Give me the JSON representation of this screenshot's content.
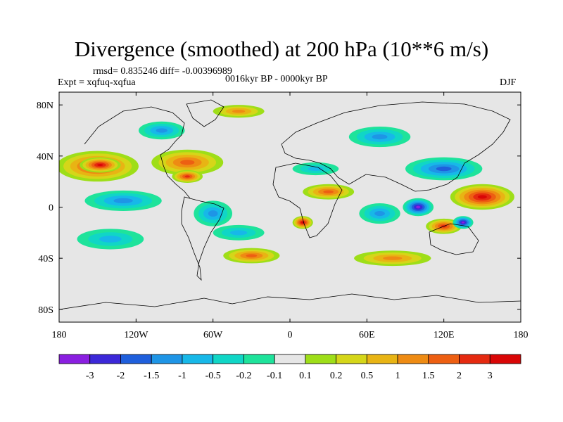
{
  "title": "Divergence (smoothed) at 200 hPa (10**6 m/s)",
  "stats_line": "rmsd= 0.835246 diff= -0.00396989",
  "expt_line": "Expt = xqfuq-xqfua",
  "period_line": "0016kyr BP - 0000kyr BP",
  "season": "DJF",
  "map": {
    "projection": "cylindrical equidistant",
    "lon_range": [
      -180,
      180
    ],
    "lat_range": [
      -90,
      90
    ],
    "lat_ticks": [
      {
        "value": 80,
        "label": "80N"
      },
      {
        "value": 40,
        "label": "40N"
      },
      {
        "value": 0,
        "label": "0"
      },
      {
        "value": -40,
        "label": "40S"
      },
      {
        "value": -80,
        "label": "80S"
      }
    ],
    "lon_ticks": [
      {
        "value": -180,
        "label": "180"
      },
      {
        "value": -120,
        "label": "120W"
      },
      {
        "value": -60,
        "label": "60W"
      },
      {
        "value": 0,
        "label": "0"
      },
      {
        "value": 60,
        "label": "60E"
      },
      {
        "value": 120,
        "label": "120E"
      },
      {
        "value": 180,
        "label": "180"
      }
    ],
    "features": [
      {
        "name": "north-pacific-positive",
        "lon": -150,
        "lat": 32,
        "rx": 32,
        "ry": 12,
        "level": 6
      },
      {
        "name": "north-pacific-core",
        "lon": -148,
        "lat": 33,
        "rx": 16,
        "ry": 6,
        "level": 7
      },
      {
        "name": "tropical-pacific-negative",
        "lon": -130,
        "lat": 5,
        "rx": 30,
        "ry": 8,
        "level": -4
      },
      {
        "name": "south-pacific-negative",
        "lon": -140,
        "lat": -25,
        "rx": 26,
        "ry": 8,
        "level": -3
      },
      {
        "name": "north-atlantic-positive",
        "lon": -80,
        "lat": 35,
        "rx": 28,
        "ry": 10,
        "level": 5
      },
      {
        "name": "gulf-positive",
        "lon": -80,
        "lat": 24,
        "rx": 12,
        "ry": 5,
        "level": 6
      },
      {
        "name": "amazon-negative",
        "lon": -60,
        "lat": -5,
        "rx": 15,
        "ry": 10,
        "level": -4
      },
      {
        "name": "south-atlantic-negative",
        "lon": -40,
        "lat": -20,
        "rx": 20,
        "ry": 6,
        "level": -3
      },
      {
        "name": "southern-atlantic-positive",
        "lon": -30,
        "lat": -38,
        "rx": 22,
        "ry": 6,
        "level": 5
      },
      {
        "name": "west-africa-positive",
        "lon": 10,
        "lat": -12,
        "rx": 8,
        "ry": 5,
        "level": 7
      },
      {
        "name": "sahara-positive",
        "lon": 30,
        "lat": 12,
        "rx": 20,
        "ry": 6,
        "level": 5
      },
      {
        "name": "mediterranean-negative",
        "lon": 20,
        "lat": 30,
        "rx": 18,
        "ry": 5,
        "level": -3
      },
      {
        "name": "siberia-negative",
        "lon": 70,
        "lat": 55,
        "rx": 24,
        "ry": 8,
        "level": -4
      },
      {
        "name": "china-negative",
        "lon": 120,
        "lat": 30,
        "rx": 30,
        "ry": 9,
        "level": -5
      },
      {
        "name": "indian-ocean-negative",
        "lon": 70,
        "lat": -5,
        "rx": 16,
        "ry": 8,
        "level": -4
      },
      {
        "name": "maritime-negative",
        "lon": 100,
        "lat": 0,
        "rx": 12,
        "ry": 7,
        "level": -7
      },
      {
        "name": "west-pacific-positive",
        "lon": 150,
        "lat": 8,
        "rx": 25,
        "ry": 10,
        "level": 7
      },
      {
        "name": "australia-positive",
        "lon": 120,
        "lat": -15,
        "rx": 14,
        "ry": 6,
        "level": 6
      },
      {
        "name": "australia-negative",
        "lon": 135,
        "lat": -12,
        "rx": 8,
        "ry": 5,
        "level": -7
      },
      {
        "name": "southern-ocean-positive",
        "lon": 80,
        "lat": -40,
        "rx": 30,
        "ry": 6,
        "level": 4
      },
      {
        "name": "north-canada-negative",
        "lon": -100,
        "lat": 60,
        "rx": 18,
        "ry": 7,
        "level": -4
      },
      {
        "name": "arctic-positive",
        "lon": -40,
        "lat": 75,
        "rx": 20,
        "ry": 5,
        "level": 4
      }
    ]
  },
  "colorbar": {
    "labels": [
      "-3",
      "-2",
      "-1.5",
      "-1",
      "-0.5",
      "-0.2",
      "-0.1",
      "0.1",
      "0.2",
      "0.5",
      "1",
      "1.5",
      "2",
      "3"
    ],
    "colors": [
      "#8a1fe0",
      "#3c28d8",
      "#1f5fdc",
      "#1e95e6",
      "#17b8e8",
      "#10d6c6",
      "#1ee39b",
      "#e6e6e6",
      "#9ede18",
      "#d5d619",
      "#e8b414",
      "#ee8b13",
      "#ed5f12",
      "#e52a10",
      "#d90606"
    ]
  },
  "field_colors": {
    "-7": "#8a1fe0",
    "-6": "#3c28d8",
    "-5": "#1f5fdc",
    "-4": "#1e95e6",
    "-3": "#17b8e8",
    "-2": "#10d6c6",
    "-1": "#1ee39b",
    "0": "#e6e6e6",
    "1": "#9ede18",
    "2": "#d5d619",
    "3": "#e8b414",
    "4": "#ee8b13",
    "5": "#ed5f12",
    "6": "#e52a10",
    "7": "#d90606"
  }
}
